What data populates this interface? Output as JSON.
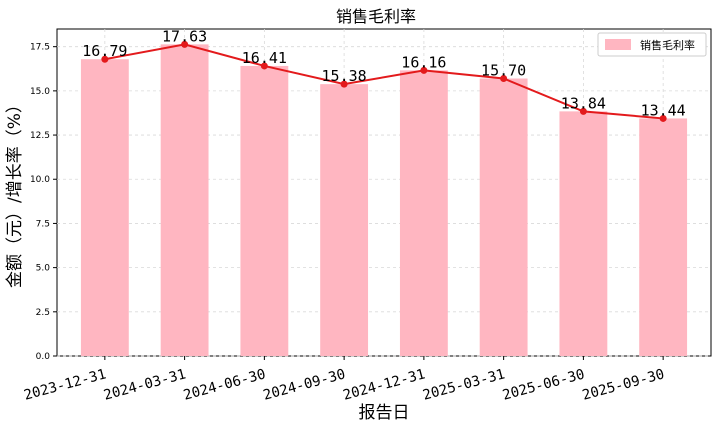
{
  "chart_data": {
    "type": "bar",
    "title": "销售毛利率",
    "xlabel": "报告日",
    "ylabel": "金额（元）/增长率（%）",
    "categories": [
      "2023-12-31",
      "2024-03-31",
      "2024-06-30",
      "2024-09-30",
      "2024-12-31",
      "2025-03-31",
      "2025-06-30",
      "2025-09-30"
    ],
    "series": [
      {
        "name": "销售毛利率",
        "kind": "bar",
        "color": "#ffb6c1",
        "values": [
          16.79,
          17.63,
          16.41,
          15.38,
          16.16,
          15.7,
          13.84,
          13.44
        ]
      },
      {
        "kind": "line",
        "color": "#e31a1c",
        "values": [
          16.79,
          17.63,
          16.41,
          15.38,
          16.16,
          15.7,
          13.84,
          13.44
        ]
      }
    ],
    "data_labels": [
      "16.79",
      "17.63",
      "16.41",
      "15.38",
      "16.16",
      "15.70",
      "13.84",
      "13.44"
    ],
    "yticks": [
      "0.0",
      "2.5",
      "5.0",
      "7.5",
      "10.0",
      "12.5",
      "15.0",
      "17.5"
    ],
    "ytick_values": [
      0,
      2.5,
      5,
      7.5,
      10,
      12.5,
      15,
      17.5
    ],
    "ylim": [
      0,
      18.5
    ],
    "grid": true,
    "legend": {
      "entries": [
        "销售毛利率"
      ],
      "placement": "top-right"
    }
  }
}
